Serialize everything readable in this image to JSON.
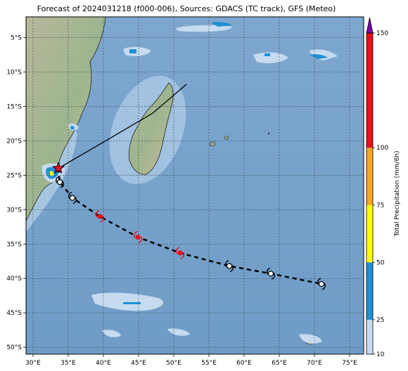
{
  "title": "Forecast of 2024031218 (f000-006), Sources: GDACS (TC track), GFS (Meteo)",
  "map": {
    "lon_ticks": [
      "30°E",
      "35°E",
      "40°E",
      "45°E",
      "50°E",
      "55°E",
      "60°E",
      "65°E",
      "70°E",
      "75°E"
    ],
    "lat_ticks": [
      "5°S",
      "10°S",
      "15°S",
      "20°S",
      "25°S",
      "30°S",
      "35°S",
      "40°S",
      "45°S",
      "50°S"
    ],
    "gridlines": true,
    "extent": {
      "lon_min": 29,
      "lon_max": 77,
      "lat_min": -51,
      "lat_max": -2
    }
  },
  "colorbar": {
    "label": "Total Precipitation (mm/6h)",
    "ticks": [
      "10",
      "25",
      "50",
      "75",
      "100",
      "150"
    ],
    "colors": [
      "#c6dbef",
      "#1f8fd6",
      "#ffff00",
      "#f5a623",
      "#e8101a",
      "#7b00a8"
    ]
  },
  "track": {
    "positions": [
      {
        "lon": 33.6,
        "lat": -24.0,
        "kind": "current-star"
      },
      {
        "lon": 33.8,
        "lat": -26.0,
        "kind": "low"
      },
      {
        "lon": 35.6,
        "lat": -28.3,
        "kind": "low"
      },
      {
        "lon": 39.5,
        "lat": -31.0,
        "kind": "storm"
      },
      {
        "lon": 44.9,
        "lat": -34.0,
        "kind": "storm"
      },
      {
        "lon": 50.9,
        "lat": -36.3,
        "kind": "storm"
      },
      {
        "lon": 57.9,
        "lat": -38.2,
        "kind": "low"
      },
      {
        "lon": 63.8,
        "lat": -39.3,
        "kind": "low"
      },
      {
        "lon": 71.0,
        "lat": -40.8,
        "kind": "low"
      }
    ],
    "cone_line": [
      {
        "lon": 33.6,
        "lat": -24.0
      },
      {
        "lon": 40.0,
        "lat": -20.2
      },
      {
        "lon": 47.0,
        "lat": -16.0
      },
      {
        "lon": 51.8,
        "lat": -11.8
      }
    ]
  }
}
